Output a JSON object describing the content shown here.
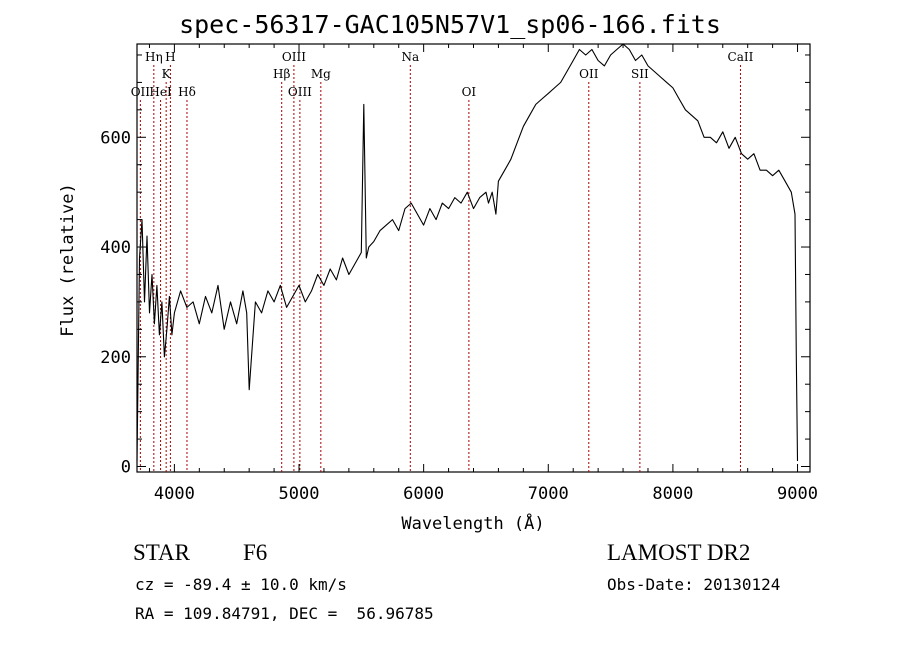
{
  "chart_data": {
    "type": "line",
    "title": "spec-56317-GAC105N57V1_sp06-166.fits",
    "xlabel": "Wavelength (Å)",
    "ylabel": "Flux (relative)",
    "xlim": [
      3700,
      9100
    ],
    "ylim": [
      -10,
      770
    ],
    "xticks": [
      4000,
      5000,
      6000,
      7000,
      8000,
      9000
    ],
    "xtick_labels": [
      "4000",
      "5000",
      "6000",
      "7000",
      "8000",
      "9000"
    ],
    "yticks": [
      0,
      200,
      400,
      600
    ],
    "ytick_labels": [
      "0",
      "200",
      "400",
      "600"
    ],
    "grid": false,
    "line_color": "#000000",
    "marker_color": "#aa0000",
    "series": [
      {
        "x": [
          3700,
          3720,
          3740,
          3760,
          3780,
          3800,
          3820,
          3840,
          3860,
          3880,
          3900,
          3920,
          3940,
          3960,
          3980,
          4000,
          4050,
          4100,
          4150,
          4200,
          4250,
          4300,
          4350,
          4400,
          4450,
          4500,
          4550,
          4580,
          4600,
          4650,
          4700,
          4750,
          4800,
          4850,
          4900,
          4950,
          5000,
          5050,
          5100,
          5150,
          5200,
          5250,
          5300,
          5350,
          5400,
          5450,
          5500,
          5520,
          5540,
          5560,
          5600,
          5650,
          5700,
          5750,
          5800,
          5850,
          5900,
          5950,
          6000,
          6050,
          6100,
          6150,
          6200,
          6250,
          6300,
          6350,
          6400,
          6450,
          6500,
          6520,
          6550,
          6580,
          6600,
          6650,
          6700,
          6750,
          6800,
          6850,
          6900,
          6950,
          7000,
          7050,
          7100,
          7150,
          7200,
          7250,
          7300,
          7350,
          7400,
          7450,
          7500,
          7550,
          7600,
          7650,
          7700,
          7750,
          7800,
          7850,
          7900,
          7950,
          8000,
          8050,
          8100,
          8150,
          8200,
          8250,
          8300,
          8350,
          8400,
          8450,
          8500,
          8550,
          8600,
          8650,
          8700,
          8750,
          8800,
          8850,
          8900,
          8950,
          8980,
          8990,
          9000
        ],
        "y": [
          10,
          380,
          450,
          300,
          420,
          280,
          350,
          260,
          330,
          240,
          300,
          200,
          250,
          310,
          240,
          280,
          320,
          290,
          300,
          260,
          310,
          280,
          330,
          250,
          300,
          260,
          320,
          280,
          140,
          300,
          280,
          320,
          300,
          330,
          290,
          310,
          330,
          300,
          320,
          350,
          330,
          360,
          340,
          380,
          350,
          370,
          390,
          660,
          380,
          400,
          410,
          430,
          440,
          450,
          430,
          470,
          480,
          460,
          440,
          470,
          450,
          480,
          470,
          490,
          480,
          500,
          470,
          490,
          500,
          480,
          500,
          460,
          520,
          540,
          560,
          590,
          620,
          640,
          660,
          670,
          680,
          690,
          700,
          720,
          740,
          760,
          750,
          760,
          740,
          730,
          750,
          760,
          770,
          760,
          740,
          750,
          730,
          720,
          710,
          700,
          690,
          670,
          650,
          640,
          630,
          600,
          600,
          590,
          610,
          580,
          600,
          570,
          560,
          570,
          540,
          540,
          530,
          540,
          520,
          500,
          460,
          200,
          10
        ]
      }
    ],
    "annotations": [
      {
        "label": "OII",
        "x": 3727,
        "row": 3
      },
      {
        "label": "Hη",
        "x": 3835,
        "row": 1
      },
      {
        "label": "HeI",
        "x": 3889,
        "row": 3
      },
      {
        "label": "K",
        "x": 3934,
        "row": 2
      },
      {
        "label": "H",
        "x": 3968,
        "row": 1
      },
      {
        "label": "Hδ",
        "x": 4101,
        "row": 3
      },
      {
        "label": "Hβ",
        "x": 4861,
        "row": 2
      },
      {
        "label": "OIII",
        "x": 4959,
        "row": 1
      },
      {
        "label": "OIII",
        "x": 5007,
        "row": 3
      },
      {
        "label": "Mg",
        "x": 5175,
        "row": 2
      },
      {
        "label": "Na",
        "x": 5893,
        "row": 1
      },
      {
        "label": "OI",
        "x": 6363,
        "row": 3
      },
      {
        "label": "OII",
        "x": 7325,
        "row": 2
      },
      {
        "label": "SII",
        "x": 7735,
        "row": 2
      },
      {
        "label": "CaII",
        "x": 8542,
        "row": 1
      }
    ]
  },
  "info": {
    "object_type": "STAR",
    "subclass": "F6",
    "survey": "LAMOST DR2",
    "redshift": "cz = -89.4 ± 10.0 km/s",
    "obs_date": "Obs-Date: 20130124",
    "coords": "RA = 109.84791, DEC =  56.96785"
  }
}
